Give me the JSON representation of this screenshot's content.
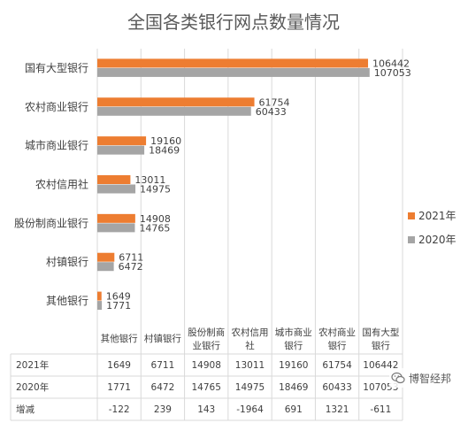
{
  "chart_data": {
    "type": "bar",
    "orientation": "horizontal",
    "title": "全国各类银行网点数量情况",
    "categories": [
      "国有大型银行",
      "农村商业银行",
      "城市商业银行",
      "农村信用社",
      "股份制商业银行",
      "村镇银行",
      "其他银行"
    ],
    "series": [
      {
        "name": "2021年",
        "color": "#ED7D31",
        "values": [
          106442,
          61754,
          19160,
          13011,
          14908,
          6711,
          1649
        ]
      },
      {
        "name": "2020年",
        "color": "#A5A5A5",
        "values": [
          107053,
          60433,
          18469,
          14975,
          14765,
          6472,
          1771
        ]
      }
    ],
    "xlim": [
      0,
      120000
    ],
    "grid": true,
    "legend_position": "right",
    "table": {
      "columns": [
        "其他银行",
        "村镇银行",
        "股份制商业银行",
        "农村信用社",
        "城市商业银行",
        "农村商业银行",
        "国有大型银行"
      ],
      "column_lines": [
        [
          "其他银行"
        ],
        [
          "村镇银行"
        ],
        [
          "股份制商",
          "业银行"
        ],
        [
          "农村信用",
          "社"
        ],
        [
          "城市商业",
          "银行"
        ],
        [
          "农村商业",
          "银行"
        ],
        [
          "国有大型",
          "银行"
        ]
      ],
      "rows": [
        {
          "label": "2021年",
          "values": [
            "1649",
            "6711",
            "14908",
            "13011",
            "19160",
            "61754",
            "106442"
          ]
        },
        {
          "label": "2020年",
          "values": [
            "1771",
            "6472",
            "14765",
            "14975",
            "18469",
            "60433",
            "107053"
          ]
        },
        {
          "label": "增减",
          "values": [
            "-122",
            "239",
            "143",
            "-1964",
            "691",
            "1321",
            "-611"
          ]
        }
      ]
    }
  },
  "watermark": {
    "text": "博智经邦",
    "icon": "wechat-icon"
  }
}
